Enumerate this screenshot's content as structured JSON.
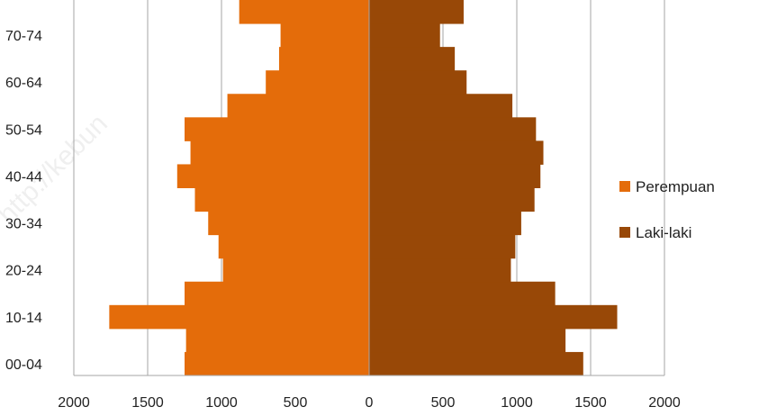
{
  "chart_data": {
    "type": "bar",
    "orientation": "horizontal-population-pyramid",
    "categories": [
      "00-04",
      "05-09",
      "10-14",
      "15-19",
      "20-24",
      "25-29",
      "30-34",
      "35-39",
      "40-44",
      "45-49",
      "50-54",
      "55-59",
      "60-64",
      "65-69",
      "70-74",
      "75+"
    ],
    "y_tick_labels": [
      "00-04",
      "10-14",
      "20-24",
      "30-34",
      "40-44",
      "50-54",
      "60-64",
      "70-74"
    ],
    "x_tick_labels": [
      "2000",
      "1500",
      "1000",
      "500",
      "0",
      "500",
      "1000",
      "1500",
      "2000"
    ],
    "xlim": [
      -2000,
      2000
    ],
    "grid": "vertical",
    "legend_position": "right",
    "series": [
      {
        "name": "Perempuan",
        "color": "#E46C0A",
        "side": "left",
        "values": [
          1250,
          1240,
          1760,
          1250,
          990,
          1020,
          1090,
          1180,
          1300,
          1210,
          1250,
          960,
          700,
          610,
          600,
          880
        ]
      },
      {
        "name": "Laki-laki",
        "color": "#984807",
        "side": "right",
        "values": [
          1450,
          1330,
          1680,
          1260,
          960,
          990,
          1030,
          1120,
          1160,
          1180,
          1130,
          970,
          660,
          580,
          480,
          640
        ]
      }
    ]
  },
  "watermark": "http://kebun"
}
